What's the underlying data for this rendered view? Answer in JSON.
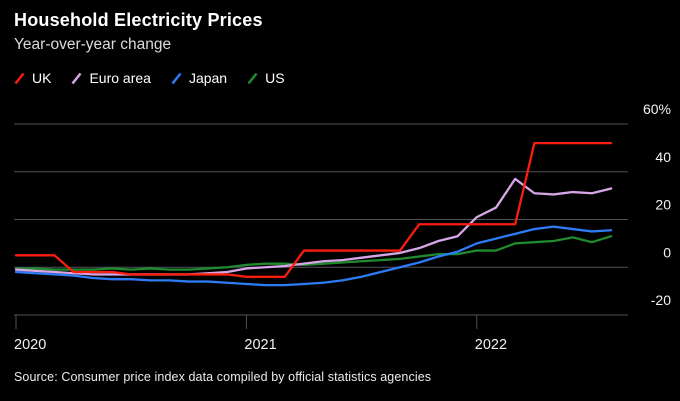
{
  "header": {
    "title": "Household Electricity Prices",
    "subtitle": "Year-over-year change"
  },
  "footer": {
    "source": "Source: Consumer price index data compiled by official statistics agencies"
  },
  "colors": {
    "background": "#000000",
    "grid": "#50525a",
    "axis_text": "#f2f2f2",
    "title_text": "#ffffff",
    "subtitle_text": "#dcdcdc",
    "source_text": "#ececec"
  },
  "chart_data": {
    "type": "line",
    "title": "Household Electricity Prices",
    "subtitle": "Year-over-year change",
    "ylabel": "Year-over-year change (%)",
    "xlabel": "",
    "ylim": [
      -20,
      60
    ],
    "grid": "horizontal",
    "legend_position": "top-left",
    "x": [
      "2020-01",
      "2020-02",
      "2020-03",
      "2020-04",
      "2020-05",
      "2020-06",
      "2020-07",
      "2020-08",
      "2020-09",
      "2020-10",
      "2020-11",
      "2020-12",
      "2021-01",
      "2021-02",
      "2021-03",
      "2021-04",
      "2021-05",
      "2021-06",
      "2021-07",
      "2021-08",
      "2021-09",
      "2021-10",
      "2021-11",
      "2021-12",
      "2022-01",
      "2022-02",
      "2022-03",
      "2022-04",
      "2022-05",
      "2022-06",
      "2022-07",
      "2022-08"
    ],
    "yticks": [
      {
        "value": 60,
        "label": "60%"
      },
      {
        "value": 40,
        "label": "40"
      },
      {
        "value": 20,
        "label": "20"
      },
      {
        "value": 0,
        "label": "0"
      },
      {
        "value": -20,
        "label": "-20"
      }
    ],
    "xticks": [
      {
        "index": 0,
        "label": "2020"
      },
      {
        "index": 12,
        "label": "2021"
      },
      {
        "index": 24,
        "label": "2022"
      }
    ],
    "series": [
      {
        "name": "UK",
        "color": "#fb1d0e",
        "values": [
          5,
          5,
          5,
          -2,
          -2,
          -2,
          -3,
          -3,
          -3,
          -3,
          -3,
          -3,
          -4,
          -4,
          -4,
          7,
          7,
          7,
          7,
          7,
          7,
          18,
          18,
          18,
          18,
          18,
          18,
          52,
          52,
          52,
          52,
          52
        ]
      },
      {
        "name": "Euro area",
        "color": "#d7a6e6",
        "values": [
          -1,
          -1.5,
          -2,
          -2.5,
          -3,
          -3,
          -3,
          -3,
          -3,
          -3,
          -2.5,
          -2,
          -0.5,
          0,
          0.5,
          1.5,
          2.5,
          3,
          4,
          5,
          6,
          8,
          11,
          13,
          21,
          25,
          37,
          31,
          30.5,
          31.5,
          31,
          33
        ]
      },
      {
        "name": "Japan",
        "color": "#2e7bf6",
        "values": [
          -2,
          -2.5,
          -3,
          -3.5,
          -4.5,
          -5,
          -5,
          -5.5,
          -5.5,
          -6,
          -6,
          -6.5,
          -7,
          -7.5,
          -7.5,
          -7,
          -6.5,
          -5.5,
          -4,
          -2,
          0,
          2,
          4.5,
          6.5,
          10,
          12,
          14,
          16,
          17,
          16,
          15,
          15.5
        ]
      },
      {
        "name": "US",
        "color": "#1f8a2e",
        "values": [
          -0.5,
          -0.5,
          -1,
          -1,
          -1,
          -0.5,
          -1,
          -0.5,
          -1,
          -1,
          -0.5,
          0,
          1,
          1.5,
          1.5,
          1,
          1.5,
          2,
          2.5,
          3,
          3.5,
          4.5,
          5.5,
          5.5,
          7,
          7,
          10,
          10.5,
          11,
          12.5,
          10.5,
          13
        ]
      }
    ]
  }
}
